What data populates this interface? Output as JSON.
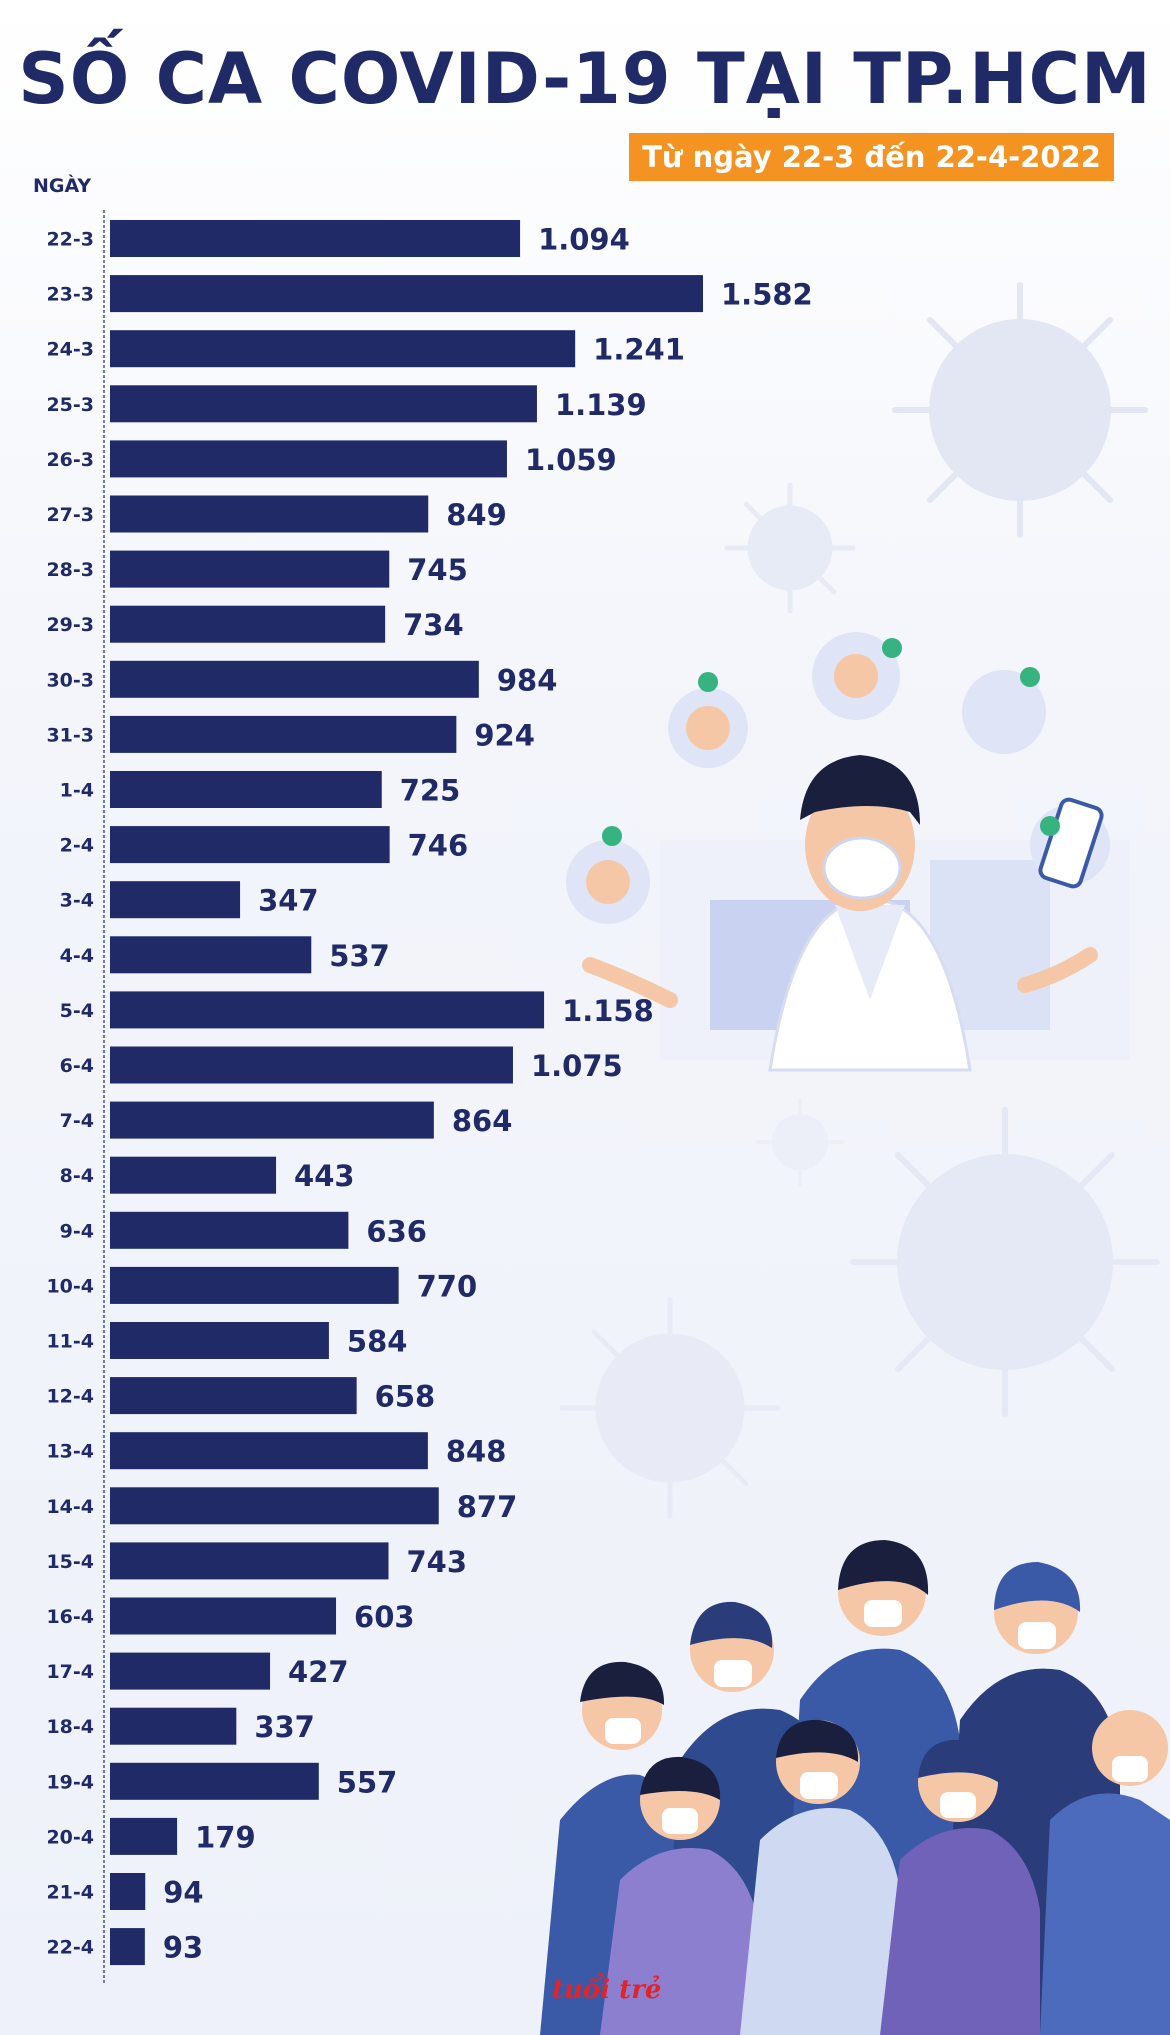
{
  "title": "SỐ CA COVID-19 TẠI TP.HCM",
  "subtitle": "Từ ngày 22-3 đến 22-4-2022",
  "colors": {
    "bar": "#1f2a66",
    "accent": "#f49322",
    "virus": "#dde2f2",
    "people": "#3a5aa8"
  },
  "chart_data": {
    "type": "bar",
    "orientation": "horizontal",
    "title": "SỐ CA COVID-19 TẠI TP.HCM",
    "subtitle": "Từ ngày 22-3 đến 22-4-2022",
    "axis_label": "NGÀY",
    "categories": [
      "22-3",
      "23-3",
      "24-3",
      "25-3",
      "26-3",
      "27-3",
      "28-3",
      "29-3",
      "30-3",
      "31-3",
      "1-4",
      "2-4",
      "3-4",
      "4-4",
      "5-4",
      "6-4",
      "7-4",
      "8-4",
      "9-4",
      "10-4",
      "11-4",
      "12-4",
      "13-4",
      "14-4",
      "15-4",
      "16-4",
      "17-4",
      "18-4",
      "19-4",
      "20-4",
      "21-4",
      "22-4"
    ],
    "values": [
      1094,
      1582,
      1241,
      1139,
      1059,
      849,
      745,
      734,
      984,
      924,
      725,
      746,
      347,
      537,
      1158,
      1075,
      864,
      443,
      636,
      770,
      584,
      658,
      848,
      877,
      743,
      603,
      427,
      337,
      557,
      179,
      94,
      93
    ],
    "value_labels": [
      "1.094",
      "1.582",
      "1.241",
      "1.139",
      "1.059",
      "849",
      "745",
      "734",
      "984",
      "924",
      "725",
      "746",
      "347",
      "537",
      "1.158",
      "1.075",
      "864",
      "443",
      "636",
      "770",
      "584",
      "658",
      "848",
      "877",
      "743",
      "603",
      "427",
      "337",
      "557",
      "179",
      "94",
      "93"
    ],
    "xlim": [
      0,
      1582
    ]
  }
}
